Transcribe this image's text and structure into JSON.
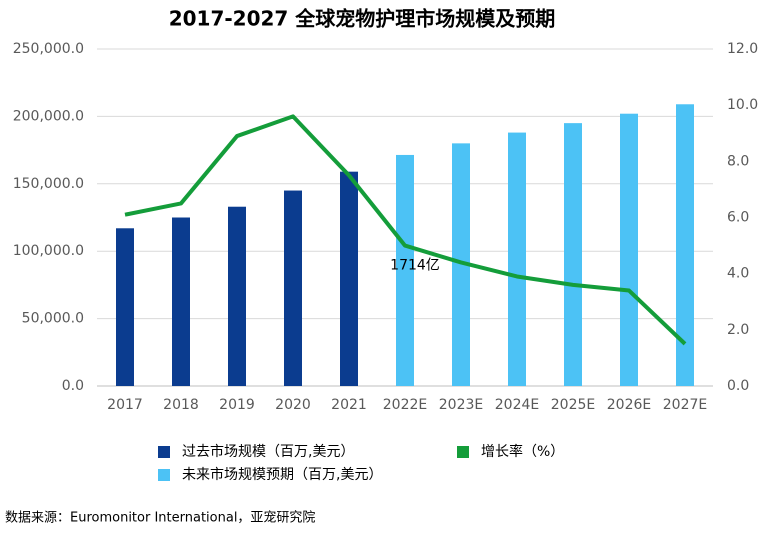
{
  "chart_data": {
    "type": "bar",
    "title": "2017-2027 全球宠物护理市场规模及预期",
    "categories": [
      "2017",
      "2018",
      "2019",
      "2020",
      "2021",
      "2022E",
      "2023E",
      "2024E",
      "2025E",
      "2026E",
      "2027E"
    ],
    "series": [
      {
        "name": "过去市场规模（百万,美元）",
        "color": "#0b3c8f",
        "values": [
          117000,
          125000,
          133000,
          145000,
          159000,
          null,
          null,
          null,
          null,
          null,
          null
        ]
      },
      {
        "name": "未来市场规模预期（百万,美元）",
        "color": "#4cc2f5",
        "values": [
          null,
          null,
          null,
          null,
          null,
          171400,
          180000,
          188000,
          195000,
          202000,
          209000
        ]
      },
      {
        "name": "增长率（%）",
        "color": "#149d3a",
        "type": "line",
        "axis": "y2",
        "values": [
          6.1,
          6.5,
          8.9,
          9.6,
          7.5,
          5.0,
          4.4,
          3.9,
          3.6,
          3.4,
          1.5
        ]
      }
    ],
    "ylim": [
      0,
      250000
    ],
    "yticks": [
      {
        "value": 0,
        "label": "0.0"
      },
      {
        "value": 50000,
        "label": "50,000.0"
      },
      {
        "value": 100000,
        "label": "100,000.0"
      },
      {
        "value": 150000,
        "label": "150,000.0"
      },
      {
        "value": 200000,
        "label": "200,000.0"
      },
      {
        "value": 250000,
        "label": "250,000.0"
      }
    ],
    "y2lim": [
      0,
      12
    ],
    "y2ticks": [
      {
        "value": 0,
        "label": "0.0"
      },
      {
        "value": 2,
        "label": "2.0"
      },
      {
        "value": 4,
        "label": "4.0"
      },
      {
        "value": 6,
        "label": "6.0"
      },
      {
        "value": 8,
        "label": "8.0"
      },
      {
        "value": 10,
        "label": "10.0"
      },
      {
        "value": 12,
        "label": "12.0"
      }
    ],
    "grid": true,
    "annotations": [
      {
        "text": "1714亿",
        "category_index": 5
      }
    ],
    "source": "数据来源：Euromonitor International，亚宠研究院"
  }
}
